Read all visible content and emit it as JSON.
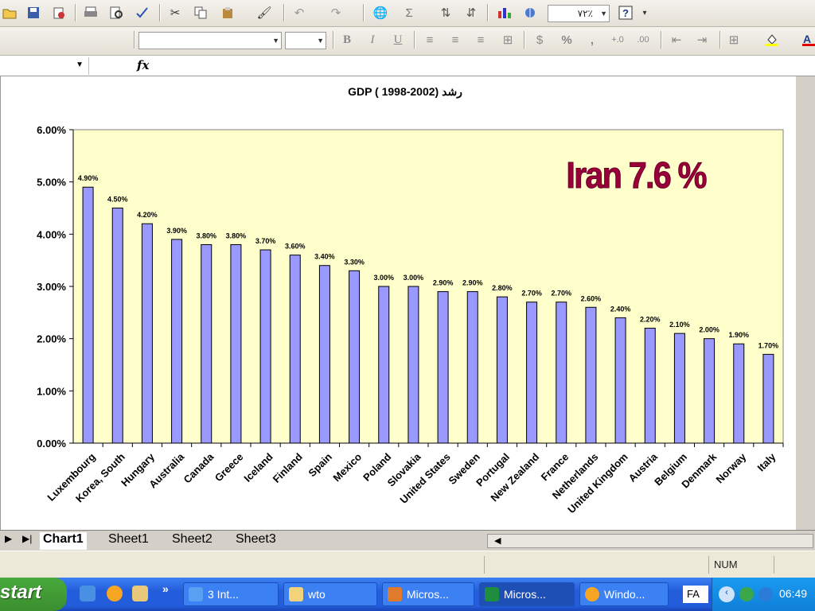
{
  "toolbar": {
    "zoom": "۷۲٪",
    "font_name": "",
    "font_size": "",
    "percent_label": "%",
    "comma_label": ","
  },
  "formula_bar": {
    "name_box": "",
    "fx_label": "fx",
    "formula": ""
  },
  "chart_data": {
    "type": "bar",
    "title": "رشد GDP  ( 1998-2002)",
    "categories": [
      "Luxembourg",
      "Korea, South",
      "Hungary",
      "Australia",
      "Canada",
      "Greece",
      "Iceland",
      "Finland",
      "Spain",
      "Mexico",
      "Poland",
      "Slovakia",
      "United States",
      "Sweden",
      "Portugal",
      "New Zealand",
      "France",
      "Netherlands",
      "United Kingdom",
      "Austria",
      "Belgium",
      "Denmark",
      "Norway",
      "Italy"
    ],
    "values": [
      4.9,
      4.5,
      4.2,
      3.9,
      3.8,
      3.8,
      3.7,
      3.6,
      3.4,
      3.3,
      3.0,
      3.0,
      2.9,
      2.9,
      2.8,
      2.7,
      2.7,
      2.6,
      2.4,
      2.2,
      2.1,
      2.0,
      1.9,
      1.7
    ],
    "data_labels": [
      "4.90%",
      "4.50%",
      "4.20%",
      "3.90%",
      "3.80%",
      "3.80%",
      "3.70%",
      "3.60%",
      "3.40%",
      "3.30%",
      "3.00%",
      "3.00%",
      "2.90%",
      "2.90%",
      "2.80%",
      "2.70%",
      "2.70%",
      "2.60%",
      "2.40%",
      "2.20%",
      "2.10%",
      "2.00%",
      "1.90%",
      "1.70%"
    ],
    "y_ticks": [
      "0.00%",
      "1.00%",
      "2.00%",
      "3.00%",
      "4.00%",
      "5.00%",
      "6.00%"
    ],
    "ylim": [
      0,
      6
    ],
    "annotation": "Iran 7.6 %",
    "plot_background": "#ffffcc",
    "bar_color": "#9999ff",
    "annotation_color": "#99003a",
    "grid": false,
    "legend": "none"
  },
  "sheet_tabs": [
    "Chart1",
    "Sheet1",
    "Sheet2",
    "Sheet3"
  ],
  "status_bar": {
    "num_lock": "NUM"
  },
  "taskbar": {
    "start_label": "start",
    "tasks": [
      {
        "label": "3 Int...",
        "icon": "internet-explorer-icon"
      },
      {
        "label": "wto",
        "icon": "folder-icon"
      },
      {
        "label": "Micros...",
        "icon": "powerpoint-icon"
      },
      {
        "label": "Micros...",
        "icon": "excel-icon"
      },
      {
        "label": "Windo...",
        "icon": "media-player-icon"
      }
    ],
    "language": "FA",
    "clock": "06:49"
  }
}
